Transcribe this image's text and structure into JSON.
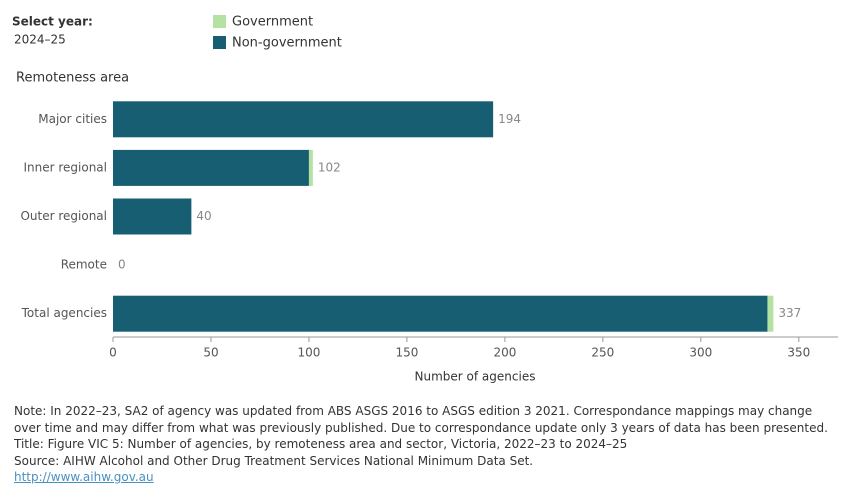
{
  "filter": {
    "label": "Select year:",
    "value": "2024–25"
  },
  "chart_data": {
    "type": "bar",
    "orientation": "horizontal",
    "stacked": true,
    "y_axis_title": "Remoteness area",
    "x_axis_title": "Number of agencies",
    "categories": [
      "Major cities",
      "Inner regional",
      "Outer regional",
      "Remote",
      "Total agencies"
    ],
    "series": [
      {
        "name": "Non-government",
        "color": "#175e73",
        "values": [
          194,
          100,
          40,
          0,
          334
        ]
      },
      {
        "name": "Government",
        "color": "#b5e2a3",
        "values": [
          0,
          2,
          0,
          0,
          3
        ]
      }
    ],
    "totals": [
      194,
      102,
      40,
      0,
      337
    ],
    "xlim": [
      0,
      370
    ],
    "xticks": [
      0,
      50,
      100,
      150,
      200,
      250,
      300,
      350
    ],
    "grid": false
  },
  "notes": [
    "Note: In 2022–23, SA2 of agency was updated from ABS ASGS 2016 to ASGS edition 3 2021. Correspondance mappings may change over time and may differ from what was previously published. Due to correspondance update only 3 years of data has been presented.",
    "Title: Figure VIC 5: Number of agencies, by remoteness area and sector, Victoria, 2022–23 to 2024–25",
    "Source: AIHW Alcohol and Other Drug Treatment Services National Minimum Data Set."
  ],
  "link": "http://www.aihw.gov.au"
}
